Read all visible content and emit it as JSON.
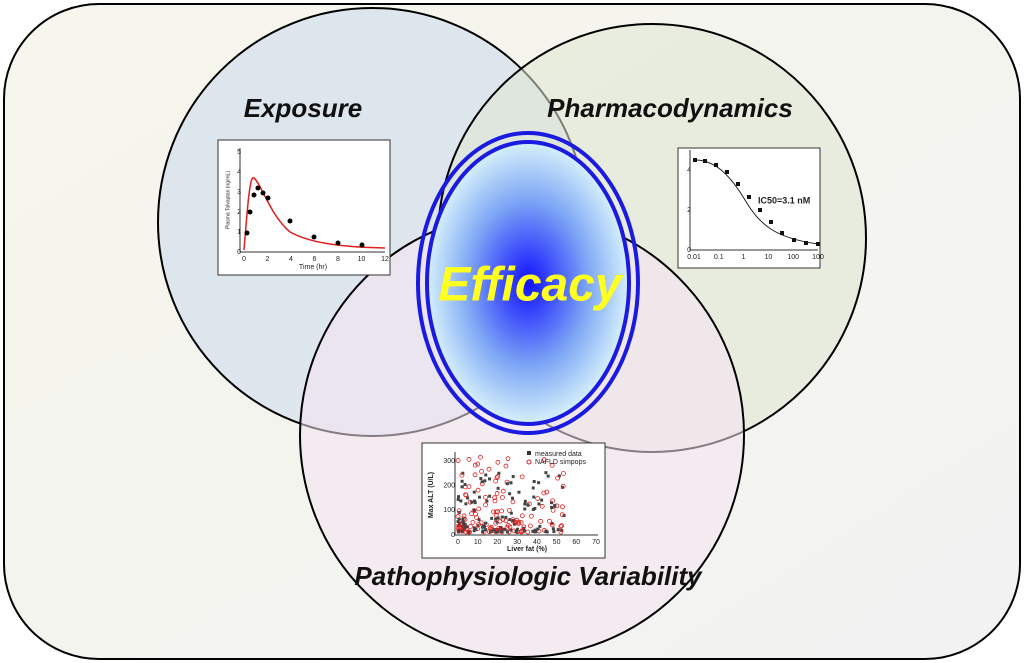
{
  "labels": {
    "exposure": "Exposure",
    "pharmacodynamics": "Pharmacodynamics",
    "variability": "Pathophysiologic Variability",
    "efficacy": "Efficacy"
  },
  "exposure_plot": {
    "y_label": "Plasma Tolvaptan (ng/mL)",
    "x_label": "Time (hr)",
    "xticks": [
      "0",
      "2",
      "4",
      "6",
      "8",
      "10",
      "12"
    ],
    "yticks": [
      "0",
      "1",
      "2",
      "3",
      "4",
      "5"
    ]
  },
  "pd_plot": {
    "annotation": "IC50=3.1 nM",
    "xticks": [
      "0.01",
      "0.1",
      "1",
      "10",
      "100",
      "100"
    ],
    "yticks": [
      "0",
      "2",
      "4"
    ]
  },
  "variability_plot": {
    "y_label": "Max ALT (U/L)",
    "x_label": "Liver fat (%)",
    "legend": [
      "measured data",
      "NAFLD simpops"
    ],
    "xticks": [
      "0",
      "10",
      "20",
      "30",
      "40",
      "50",
      "60",
      "70"
    ],
    "yticks": [
      "0",
      "100",
      "200",
      "300"
    ]
  }
}
